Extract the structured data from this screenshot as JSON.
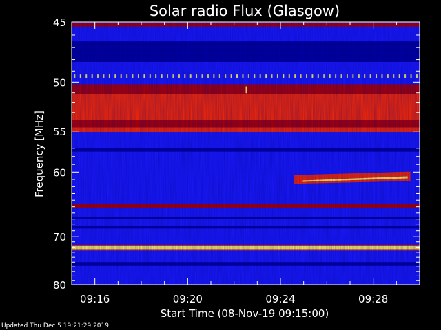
{
  "chart_data": {
    "type": "heatmap",
    "title": "Solar radio Flux (Glasgow)",
    "xlabel": "Start Time (08-Nov-19 09:15:00)",
    "ylabel": "Frequency [MHz]",
    "x_ticks": [
      "09:16",
      "09:20",
      "09:24",
      "09:28"
    ],
    "x_tick_minutes": [
      1,
      5,
      9,
      13
    ],
    "x_range_minutes": [
      0,
      15
    ],
    "y_ticks": [
      45,
      50,
      55,
      60,
      70,
      80
    ],
    "y_range_mhz": [
      45,
      80
    ],
    "y_scale": "reciprocal",
    "colors": {
      "background": "#000000",
      "low": "#1a1aff",
      "mid": "#b00000",
      "high": "#ff2a00",
      "peak": "#ffff60"
    },
    "bands": [
      {
        "f_low": 45.05,
        "f_high": 45.35,
        "level": "mid"
      },
      {
        "f_low": 46.5,
        "f_high": 48.2,
        "level": "low-dark"
      },
      {
        "f_low": 49.3,
        "f_high": 49.6,
        "level": "dotted-peak"
      },
      {
        "f_low": 50.2,
        "f_high": 51.1,
        "level": "mid"
      },
      {
        "f_low": 51.1,
        "f_high": 53.8,
        "level": "high"
      },
      {
        "f_low": 53.8,
        "f_high": 54.6,
        "level": "mid"
      },
      {
        "f_low": 54.6,
        "f_high": 55.1,
        "level": "high"
      },
      {
        "f_low": 57.0,
        "f_high": 57.4,
        "level": "low-dark"
      },
      {
        "f_low": 64.6,
        "f_high": 65.2,
        "level": "mid"
      },
      {
        "f_low": 66.6,
        "f_high": 67.0,
        "level": "low-dark"
      },
      {
        "f_low": 68.2,
        "f_high": 68.6,
        "level": "low-dark"
      },
      {
        "f_low": 71.8,
        "f_high": 72.4,
        "level": "peak"
      },
      {
        "f_low": 75.0,
        "f_high": 75.8,
        "level": "low-dark"
      }
    ],
    "bursts": [
      {
        "t_start": 9.6,
        "t_end": 14.6,
        "f_low": 60.4,
        "f_high": 61.5,
        "level": "peak"
      }
    ],
    "spikes": [
      {
        "t": 7.5,
        "f_low": 50.4,
        "f_high": 50.9,
        "level": "peak"
      }
    ]
  },
  "footer": "Updated Thu Dec  5 19:21:29 2019"
}
